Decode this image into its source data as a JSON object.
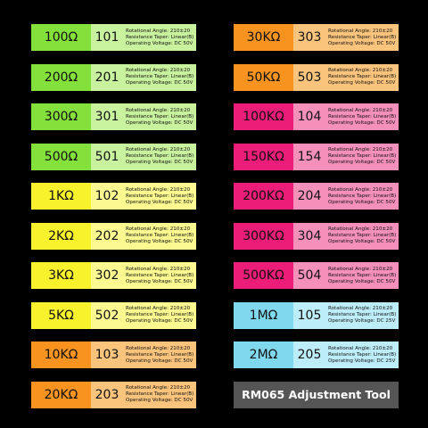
{
  "labels": [
    {
      "value": "100Ω",
      "code": "101",
      "specs": [
        "Rotational Angle: 210±20",
        "Resistance Taper: Linear(B)",
        "Operating Voltage: DC 50V"
      ],
      "color": "#84e03a",
      "light": "#c9f29e"
    },
    {
      "value": "200Ω",
      "code": "201",
      "specs": [
        "Rotational Angle: 210±20",
        "Resistance Taper: Linear(B)",
        "Operating Voltage: DC 50V"
      ],
      "color": "#84e03a",
      "light": "#c9f29e"
    },
    {
      "value": "300Ω",
      "code": "301",
      "specs": [
        "Rotational Angle: 210±20",
        "Resistance Taper: Linear(B)",
        "Operating Voltage: DC 50V"
      ],
      "color": "#84e03a",
      "light": "#c9f29e"
    },
    {
      "value": "500Ω",
      "code": "501",
      "specs": [
        "Rotational Angle: 210±20",
        "Resistance Taper: Linear(B)",
        "Operating Voltage: DC 50V"
      ],
      "color": "#84e03a",
      "light": "#c9f29e"
    },
    {
      "value": "1KΩ",
      "code": "102",
      "specs": [
        "Rotational Angle: 210±20",
        "Resistance Taper: Linear(B)",
        "Operating Voltage: DC 50V"
      ],
      "color": "#f8f22c",
      "light": "#fbf98f"
    },
    {
      "value": "2KΩ",
      "code": "202",
      "specs": [
        "Rotational Angle: 210±20",
        "Resistance Taper: Linear(B)",
        "Operating Voltage: DC 50V"
      ],
      "color": "#f8f22c",
      "light": "#fbf98f"
    },
    {
      "value": "3KΩ",
      "code": "302",
      "specs": [
        "Rotational Angle: 210±20",
        "Resistance Taper: Linear(B)",
        "Operating Voltage: DC 50V"
      ],
      "color": "#f8f22c",
      "light": "#fbf98f"
    },
    {
      "value": "5KΩ",
      "code": "502",
      "specs": [
        "Rotational Angle: 210±20",
        "Resistance Taper: Linear(B)",
        "Operating Voltage: DC 50V"
      ],
      "color": "#f8f22c",
      "light": "#fbf98f"
    },
    {
      "value": "10KΩ",
      "code": "103",
      "specs": [
        "Rotational Angle: 210±20",
        "Resistance Taper: Linear(B)",
        "Operating Voltage: DC 50V"
      ],
      "color": "#f7931e",
      "light": "#fbc47c"
    },
    {
      "value": "20KΩ",
      "code": "203",
      "specs": [
        "Rotational Angle: 210±20",
        "Resistance Taper: Linear(B)",
        "Operating Voltage: DC 50V"
      ],
      "color": "#f7931e",
      "light": "#fbc47c"
    },
    {
      "value": "30KΩ",
      "code": "303",
      "specs": [
        "Rotational Angle: 210±20",
        "Resistance Taper: Linear(B)",
        "Operating Voltage: DC 50V"
      ],
      "color": "#f7931e",
      "light": "#fbc47c"
    },
    {
      "value": "50KΩ",
      "code": "503",
      "specs": [
        "Rotational Angle: 210±20",
        "Resistance Taper: Linear(B)",
        "Operating Voltage: DC 50V"
      ],
      "color": "#f7931e",
      "light": "#fbc47c"
    },
    {
      "value": "100KΩ",
      "code": "104",
      "specs": [
        "Rotational Angle: 210±20",
        "Resistance Taper: Linear(B)",
        "Operating Voltage: DC 50V"
      ],
      "color": "#ec1c79",
      "light": "#f590bb"
    },
    {
      "value": "150KΩ",
      "code": "154",
      "specs": [
        "Rotational Angle: 210±20",
        "Resistance Taper: Linear(B)",
        "Operating Voltage: DC 50V"
      ],
      "color": "#ec1c79",
      "light": "#f590bb"
    },
    {
      "value": "200KΩ",
      "code": "204",
      "specs": [
        "Rotational Angle: 210±20",
        "Resistance Taper: Linear(B)",
        "Operating Voltage: DC 50V"
      ],
      "color": "#ec1c79",
      "light": "#f590bb"
    },
    {
      "value": "300KΩ",
      "code": "304",
      "specs": [
        "Rotational Angle: 210±20",
        "Resistance Taper: Linear(B)",
        "Operating Voltage: DC 50V"
      ],
      "color": "#ec1c79",
      "light": "#f590bb"
    },
    {
      "value": "500KΩ",
      "code": "504",
      "specs": [
        "Rotational Angle: 210±20",
        "Resistance Taper: Linear(B)",
        "Operating Voltage: DC 50V"
      ],
      "color": "#ec1c79",
      "light": "#f590bb"
    },
    {
      "value": "1MΩ",
      "code": "105",
      "specs": [
        "Rotational Angle: 210±20",
        "Resistance Taper: Linear(B)",
        "Operating Voltage: DC 25V"
      ],
      "color": "#80d8ef",
      "light": "#bdedf9"
    },
    {
      "value": "2MΩ",
      "code": "205",
      "specs": [
        "Rotational Angle: 210±20",
        "Resistance Taper: Linear(B)",
        "Operating Voltage: DC 25V"
      ],
      "color": "#80d8ef",
      "light": "#bdedf9"
    }
  ],
  "tool": {
    "title": "RM065 Adjustment Tool",
    "color": "#555555"
  }
}
